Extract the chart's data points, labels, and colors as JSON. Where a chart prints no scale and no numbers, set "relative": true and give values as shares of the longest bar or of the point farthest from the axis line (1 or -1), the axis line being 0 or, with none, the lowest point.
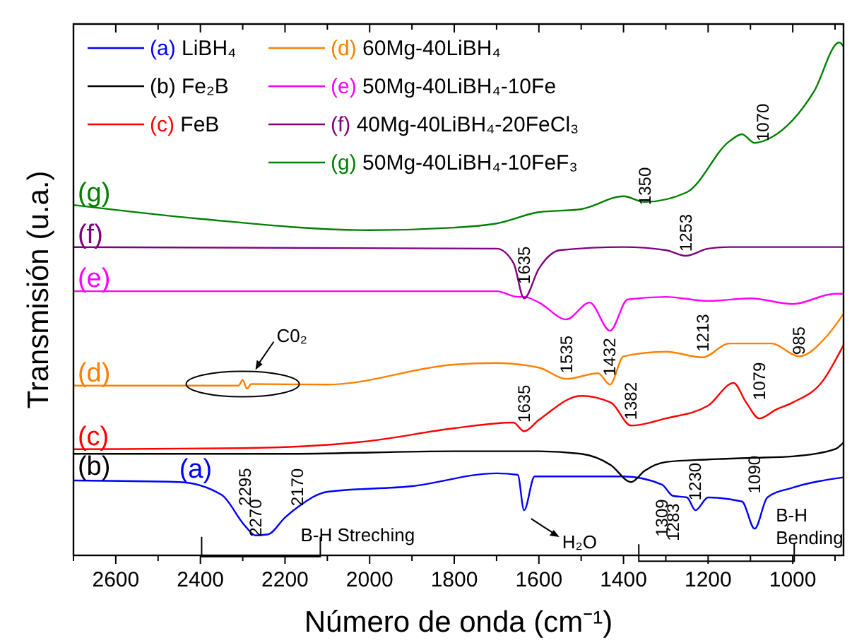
{
  "chart_data": {
    "type": "line",
    "relative": true,
    "xlabel": "Número de onda (cm⁻¹)",
    "ylabel": "Transmisión (u.a.)",
    "xlim": [
      2700,
      880
    ],
    "xticks": [
      {
        "value": 2700,
        "label": null
      },
      2600,
      {
        "value": 2500,
        "label": null
      },
      2400,
      {
        "value": 2300,
        "label": null
      },
      2200,
      {
        "value": 2100,
        "label": null
      },
      2000,
      {
        "value": 1900,
        "label": null
      },
      1800,
      {
        "value": 1700,
        "label": null
      },
      1600,
      {
        "value": 1500,
        "label": null
      },
      1400,
      {
        "value": 1300,
        "label": null
      },
      1200,
      {
        "value": 1100,
        "label": null
      },
      1000,
      {
        "value": 900,
        "label": null
      }
    ],
    "tick_labels": "x",
    "legend": "top left",
    "grid": false,
    "marker": "none",
    "line_style": "solid",
    "series": [
      {
        "name": "(a) LiBH₄",
        "color": "#0000ff",
        "x": [
          2700,
          2450,
          2350,
          2295,
          2270,
          2240,
          2200,
          2170,
          2100,
          1900,
          1700,
          1650,
          1635,
          1610,
          1400,
          1309,
          1283,
          1250,
          1230,
          1200,
          1120,
          1090,
          1060,
          1000,
          880
        ],
        "values": [
          0.146,
          0.143,
          0.118,
          0.058,
          0.039,
          0.041,
          0.074,
          0.094,
          0.124,
          0.135,
          0.16,
          0.157,
          0.088,
          0.154,
          0.154,
          0.138,
          0.116,
          0.113,
          0.088,
          0.113,
          0.105,
          0.052,
          0.113,
          0.132,
          0.152
        ]
      },
      {
        "name": "(b) Fe₂B",
        "color": "#000000",
        "x": [
          2700,
          2200,
          1800,
          1600,
          1500,
          1430,
          1382,
          1350,
          1300,
          1200,
          1100,
          1000,
          900,
          880
        ],
        "values": [
          0.198,
          0.198,
          0.203,
          0.203,
          0.198,
          0.176,
          0.143,
          0.165,
          0.182,
          0.187,
          0.19,
          0.193,
          0.207,
          0.22
        ]
      },
      {
        "name": "(c) FeB",
        "color": "#ff0000",
        "x": [
          2700,
          2300,
          2000,
          1800,
          1660,
          1635,
          1600,
          1500,
          1430,
          1382,
          1300,
          1200,
          1140,
          1110,
          1079,
          1040,
          1000,
          930,
          880
        ],
        "values": [
          0.207,
          0.209,
          0.223,
          0.248,
          0.259,
          0.242,
          0.264,
          0.311,
          0.298,
          0.253,
          0.267,
          0.292,
          0.336,
          0.298,
          0.267,
          0.284,
          0.298,
          0.339,
          0.41
        ]
      },
      {
        "name": "(d) 60Mg-40LiBH₄",
        "color": "#ff8000",
        "x": [
          2700,
          2310,
          2300,
          2290,
          2280,
          2100,
          1800,
          1700,
          1600,
          1535,
          1460,
          1432,
          1400,
          1300,
          1213,
          1150,
          1050,
          985,
          920,
          880
        ],
        "values": [
          0.331,
          0.331,
          0.342,
          0.325,
          0.334,
          0.333,
          0.372,
          0.375,
          0.366,
          0.344,
          0.355,
          0.333,
          0.388,
          0.397,
          0.386,
          0.413,
          0.413,
          0.388,
          0.427,
          0.471
        ]
      },
      {
        "name": "(e) 50Mg-40LiBH₄-10Fe",
        "color": "#ff00ff",
        "x": [
          2700,
          1700,
          1650,
          1635,
          1600,
          1535,
          1480,
          1432,
          1390,
          1300,
          1200,
          1100,
          1000,
          900,
          880
        ],
        "values": [
          0.515,
          0.515,
          0.504,
          0.504,
          0.493,
          0.46,
          0.493,
          0.438,
          0.499,
          0.504,
          0.496,
          0.501,
          0.49,
          0.51,
          0.51
        ]
      },
      {
        "name": "(f) 40Mg-40LiBH₄-20FeCl₃",
        "color": "#800080",
        "x": [
          2700,
          1700,
          1660,
          1635,
          1600,
          1550,
          1400,
          1300,
          1253,
          1200,
          1150,
          880
        ],
        "values": [
          0.601,
          0.598,
          0.57,
          0.501,
          0.559,
          0.595,
          0.601,
          0.595,
          0.584,
          0.598,
          0.601,
          0.601
        ]
      },
      {
        "name": "(g) 50Mg-40LiBH₄-10FeF₃",
        "color": "#008000",
        "x": [
          2700,
          2400,
          2000,
          1800,
          1700,
          1600,
          1500,
          1400,
          1350,
          1250,
          1150,
          1120,
          1090,
          1050,
          950,
          890,
          880
        ],
        "values": [
          0.683,
          0.656,
          0.634,
          0.639,
          0.647,
          0.669,
          0.675,
          0.7,
          0.689,
          0.708,
          0.807,
          0.821,
          0.804,
          0.815,
          0.904,
          1,
          0.992
        ]
      }
    ],
    "annotations": [
      {
        "text": "2295",
        "x": 2295,
        "y": 0.058
      },
      {
        "text": "2270",
        "x": 2270,
        "y": 0.036
      },
      {
        "text": "2170",
        "x": 2170,
        "y": 0.096
      },
      {
        "text": "1309",
        "x": 1309,
        "y": 0.138
      },
      {
        "text": "1283",
        "x": 1283,
        "y": 0.116
      },
      {
        "text": "1230",
        "x": 1230,
        "y": 0.107
      },
      {
        "text": "1090",
        "x": 1090,
        "y": 0.052
      },
      {
        "text": "1635",
        "x": 1635,
        "y": 0.259
      },
      {
        "text": "1382",
        "x": 1382,
        "y": 0.264
      },
      {
        "text": "1079",
        "x": 1079,
        "y": 0.267
      },
      {
        "text": "1535",
        "x": 1535,
        "y": 0.355
      },
      {
        "text": "1432",
        "x": 1432,
        "y": 0.35
      },
      {
        "text": "1213",
        "x": 1213,
        "y": 0.397
      },
      {
        "text": "985",
        "x": 985,
        "y": 0.391
      },
      {
        "text": "1635",
        "x": 1635,
        "y": 0.529
      },
      {
        "text": "1253",
        "x": 1253,
        "y": 0.592
      },
      {
        "text": "1350",
        "x": 1350,
        "y": 0.683
      },
      {
        "text": "1070",
        "x": 1070,
        "y": 0.807
      },
      {
        "text": "B-H Streching",
        "x": 2170,
        "y": 0.094
      },
      {
        "text": "H₂O",
        "x": 1635,
        "y": 0.088
      },
      {
        "text": "B-H Bending",
        "x": 1090,
        "y": 0.052
      },
      {
        "text": "C0₂",
        "x": 2300,
        "y": 0.334
      },
      {
        "text": "(a)",
        "x": 2450,
        "y": 0.143
      },
      {
        "text": "(b)",
        "x": 2690,
        "y": 0.198
      },
      {
        "text": "(c)",
        "x": 2690,
        "y": 0.207
      },
      {
        "text": "(d)",
        "x": 2690,
        "y": 0.331
      },
      {
        "text": "(e)",
        "x": 2690,
        "y": 0.515
      },
      {
        "text": "(f)",
        "x": 2690,
        "y": 0.601
      },
      {
        "text": "(g)",
        "x": 2690,
        "y": 0.682
      }
    ]
  }
}
